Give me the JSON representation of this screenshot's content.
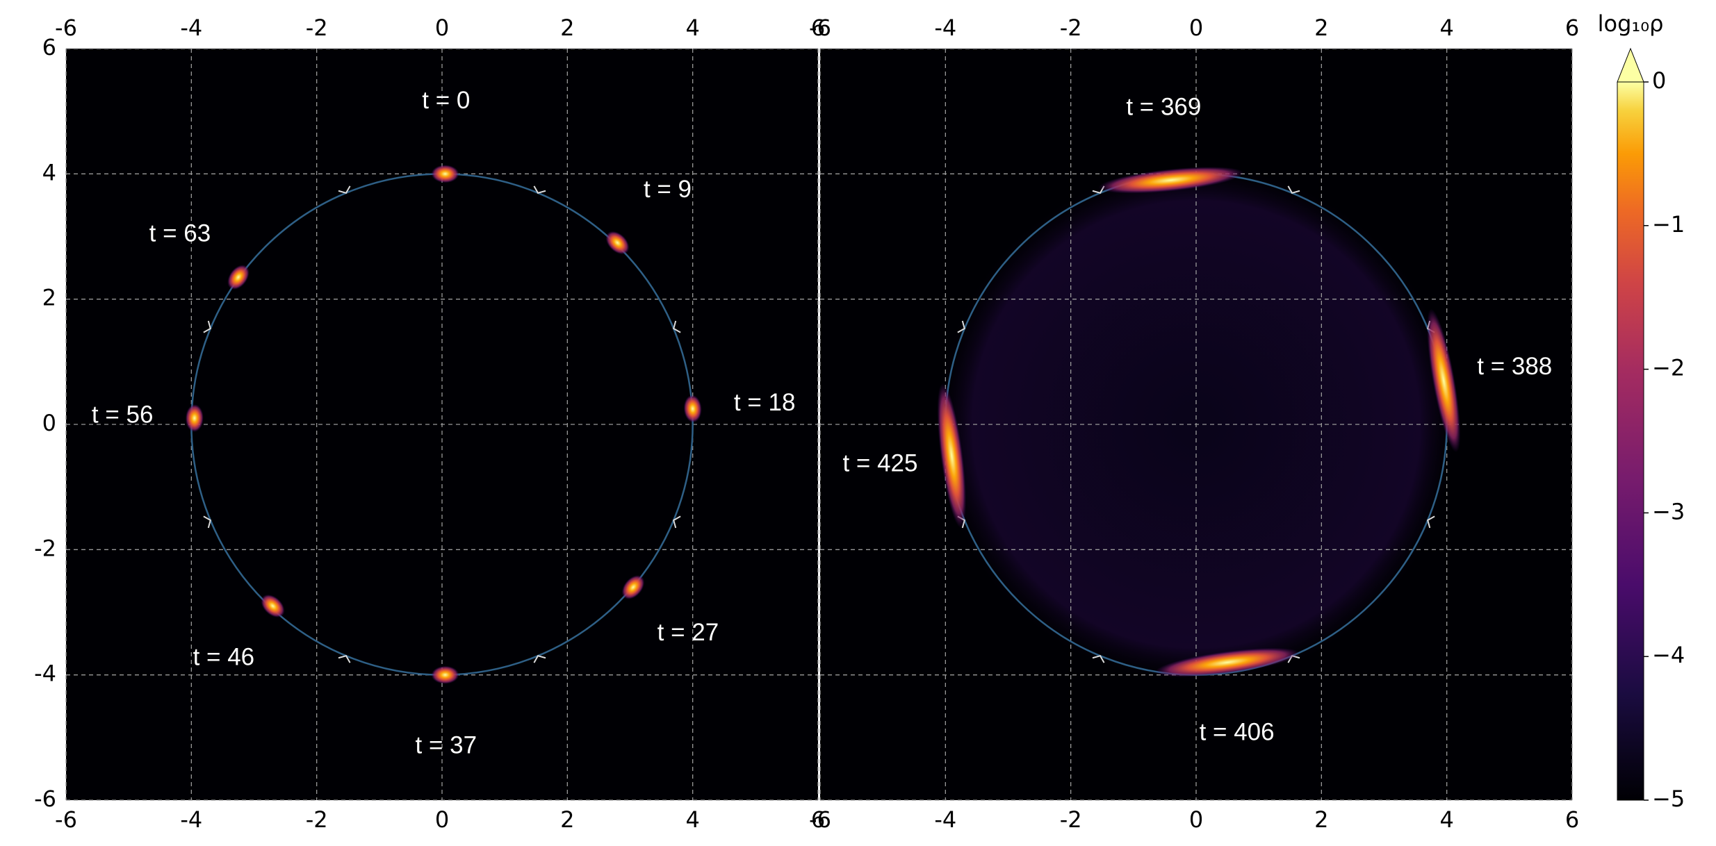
{
  "chart_data": [
    {
      "type": "orbit",
      "xlim": [
        -6,
        6
      ],
      "ylim": [
        -6,
        6
      ],
      "xticks": [
        -6,
        -4,
        -2,
        0,
        2,
        4,
        6
      ],
      "yticks": [
        -6,
        -4,
        -2,
        0,
        2,
        4,
        6
      ],
      "grid": true,
      "xtick_labels": "both",
      "ytick_labels": "left",
      "orbit_radius": 4,
      "orbit_color": "#2e5f86",
      "snapshots": {
        "labels": [
          "t = 0",
          "t = 9",
          "t = 18",
          "t = 27",
          "t = 37",
          "t = 46",
          "t = 56",
          "t = 63"
        ],
        "x": [
          0.05,
          2.8,
          4.0,
          3.05,
          0.05,
          -2.7,
          -3.95,
          -3.25
        ],
        "y": [
          4.0,
          2.9,
          0.25,
          -2.6,
          -4.0,
          -2.9,
          0.1,
          2.35
        ]
      }
    },
    {
      "type": "orbit",
      "xlim": [
        -6,
        6
      ],
      "ylim": [
        -6,
        6
      ],
      "xticks": [
        -6,
        -4,
        -2,
        0,
        2,
        4,
        6
      ],
      "yticks": [
        -6,
        -4,
        -2,
        0,
        2,
        4,
        6
      ],
      "grid": true,
      "xtick_labels": "both",
      "ytick_labels": "none",
      "orbit_radius": 4,
      "orbit_color": "#2e5f86",
      "snapshots": {
        "labels": [
          "t = 369",
          "t = 388",
          "t = 406",
          "t = 425"
        ],
        "x": [
          -0.4,
          3.95,
          0.5,
          -3.9
        ],
        "y": [
          3.9,
          0.7,
          -3.8,
          -0.5
        ]
      }
    },
    {
      "type": "colorbar",
      "label": "log₁₀ρ",
      "colormap": "inferno",
      "lim": [
        -5,
        0
      ],
      "extend": "max",
      "ticks": [
        {
          "value": 0,
          "label": "0"
        },
        {
          "value": -1,
          "label": "−1"
        },
        {
          "value": -2,
          "label": "−2"
        },
        {
          "value": -3,
          "label": "−3"
        },
        {
          "value": -4,
          "label": "−4"
        },
        {
          "value": -5,
          "label": "−5"
        }
      ]
    }
  ]
}
